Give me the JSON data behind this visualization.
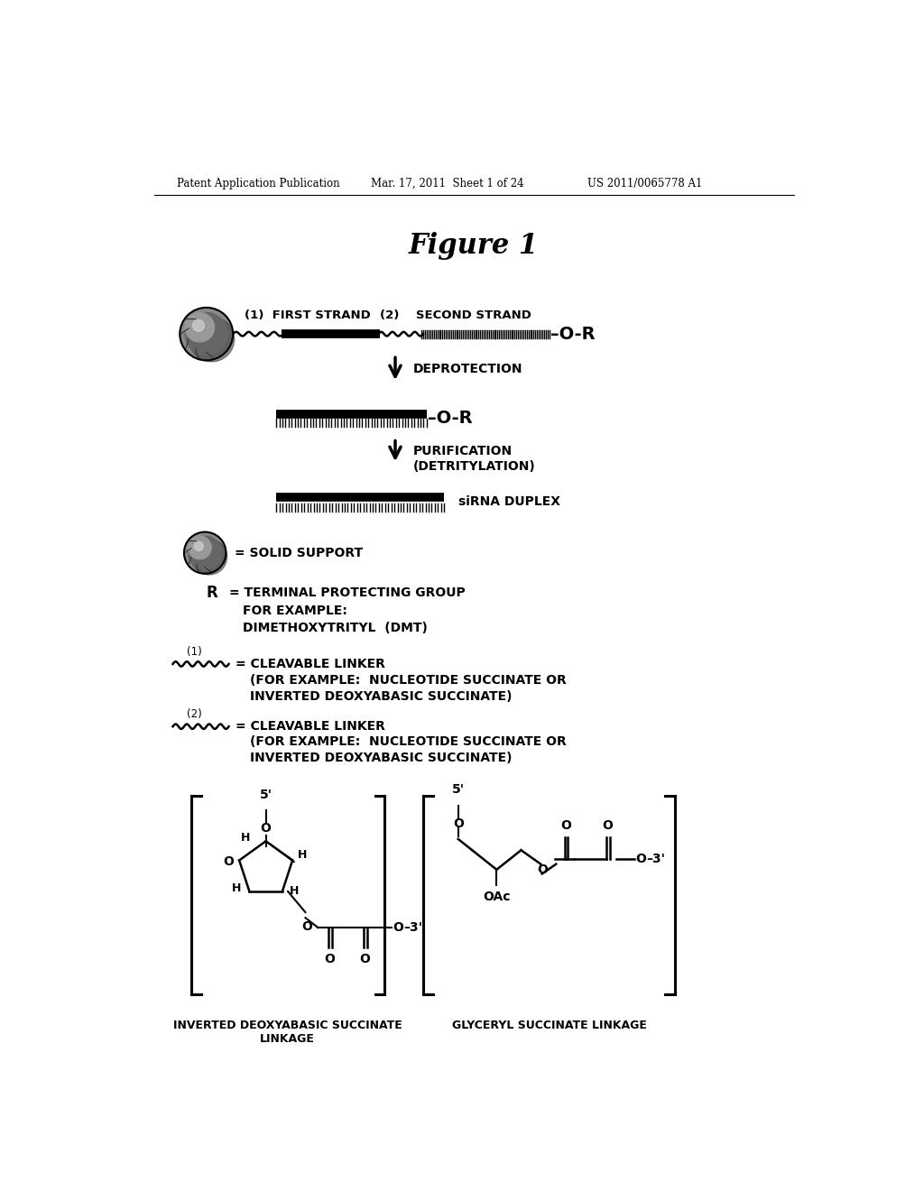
{
  "bg_color": "#ffffff",
  "header_left": "Patent Application Publication",
  "header_mid": "Mar. 17, 2011  Sheet 1 of 24",
  "header_right": "US 2011/0065778 A1",
  "figure_title": "Figure 1",
  "deprotection_label": "DEPROTECTION",
  "purification_label": "PURIFICATION\n(DETRITYLATION)",
  "sirna_label": "siRNA DUPLEX",
  "solid_support_label": "= SOLID SUPPORT",
  "bottom_label_left": "INVERTED DEOXYABASIC SUCCINATE\nLINKAGE",
  "bottom_label_right": "GLYCERYL SUCCINATE LINKAGE"
}
